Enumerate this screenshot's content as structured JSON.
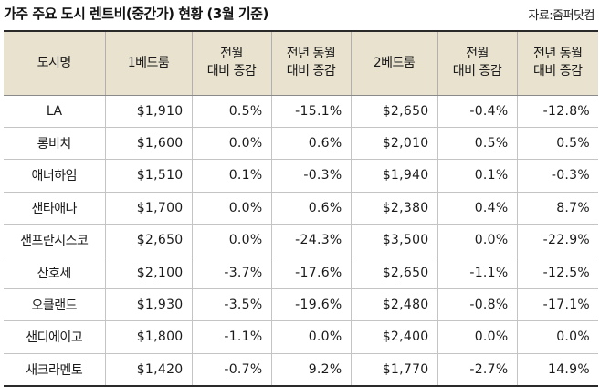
{
  "title": "가주 주요 도시 렌트비(중간가) 현황 (3월 기준)",
  "source": "자료:줌퍼닷컴",
  "table": {
    "headers": [
      [
        "도시명"
      ],
      [
        "1베드룸"
      ],
      [
        "전월",
        "대비 증감"
      ],
      [
        "전년 동월",
        "대비 증감"
      ],
      [
        "2베드룸"
      ],
      [
        "전월",
        "대비 증감"
      ],
      [
        "전년 동월",
        "대비 증감"
      ]
    ],
    "rows": [
      [
        "LA",
        "$1,910",
        "0.5%",
        "-15.1%",
        "$2,650",
        "-0.4%",
        "-12.8%"
      ],
      [
        "롱비치",
        "$1,600",
        "0.0%",
        "0.6%",
        "$2,010",
        "0.5%",
        "0.5%"
      ],
      [
        "애너하임",
        "$1,510",
        "0.1%",
        "-0.3%",
        "$1,940",
        "0.1%",
        "-0.3%"
      ],
      [
        "샌타애나",
        "$1,700",
        "0.0%",
        "0.6%",
        "$2,380",
        "0.4%",
        "8.7%"
      ],
      [
        "샌프란시스코",
        "$2,650",
        "0.0%",
        "-24.3%",
        "$3,500",
        "0.0%",
        "-22.9%"
      ],
      [
        "산호세",
        "$2,100",
        "-3.7%",
        "-17.6%",
        "$2,650",
        "-1.1%",
        "-12.5%"
      ],
      [
        "오클랜드",
        "$1,930",
        "-3.5%",
        "-19.6%",
        "$2,480",
        "-0.8%",
        "-17.1%"
      ],
      [
        "샌디에이고",
        "$1,800",
        "-1.1%",
        "0.0%",
        "$2,400",
        "0.0%",
        "0.0%"
      ],
      [
        "새크라멘토",
        "$1,420",
        "-0.7%",
        "9.2%",
        "$1,770",
        "-2.7%",
        "14.9%"
      ]
    ]
  }
}
